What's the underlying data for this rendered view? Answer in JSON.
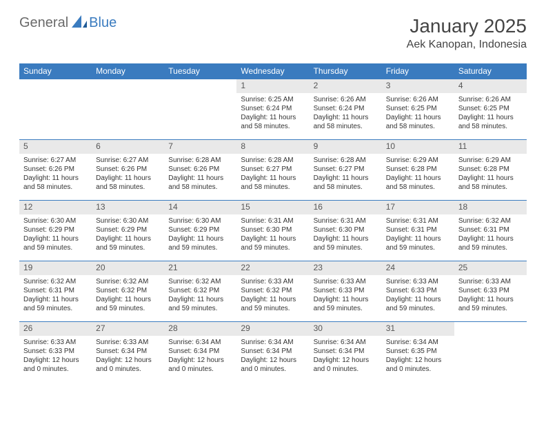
{
  "logo": {
    "part1": "General",
    "part2": "Blue"
  },
  "title": "January 2025",
  "location": "Aek Kanopan, Indonesia",
  "colors": {
    "header_bg": "#3a7bbf",
    "header_text": "#ffffff",
    "daynum_bg": "#e9e9e9",
    "border": "#3a7bbf",
    "logo_gray": "#6a6a6a",
    "logo_blue": "#3a7bbf"
  },
  "day_headers": [
    "Sunday",
    "Monday",
    "Tuesday",
    "Wednesday",
    "Thursday",
    "Friday",
    "Saturday"
  ],
  "weeks": [
    [
      {
        "empty": true
      },
      {
        "empty": true
      },
      {
        "empty": true
      },
      {
        "num": "1",
        "sunrise": "Sunrise: 6:25 AM",
        "sunset": "Sunset: 6:24 PM",
        "daylight": "Daylight: 11 hours and 58 minutes."
      },
      {
        "num": "2",
        "sunrise": "Sunrise: 6:26 AM",
        "sunset": "Sunset: 6:24 PM",
        "daylight": "Daylight: 11 hours and 58 minutes."
      },
      {
        "num": "3",
        "sunrise": "Sunrise: 6:26 AM",
        "sunset": "Sunset: 6:25 PM",
        "daylight": "Daylight: 11 hours and 58 minutes."
      },
      {
        "num": "4",
        "sunrise": "Sunrise: 6:26 AM",
        "sunset": "Sunset: 6:25 PM",
        "daylight": "Daylight: 11 hours and 58 minutes."
      }
    ],
    [
      {
        "num": "5",
        "sunrise": "Sunrise: 6:27 AM",
        "sunset": "Sunset: 6:26 PM",
        "daylight": "Daylight: 11 hours and 58 minutes."
      },
      {
        "num": "6",
        "sunrise": "Sunrise: 6:27 AM",
        "sunset": "Sunset: 6:26 PM",
        "daylight": "Daylight: 11 hours and 58 minutes."
      },
      {
        "num": "7",
        "sunrise": "Sunrise: 6:28 AM",
        "sunset": "Sunset: 6:26 PM",
        "daylight": "Daylight: 11 hours and 58 minutes."
      },
      {
        "num": "8",
        "sunrise": "Sunrise: 6:28 AM",
        "sunset": "Sunset: 6:27 PM",
        "daylight": "Daylight: 11 hours and 58 minutes."
      },
      {
        "num": "9",
        "sunrise": "Sunrise: 6:28 AM",
        "sunset": "Sunset: 6:27 PM",
        "daylight": "Daylight: 11 hours and 58 minutes."
      },
      {
        "num": "10",
        "sunrise": "Sunrise: 6:29 AM",
        "sunset": "Sunset: 6:28 PM",
        "daylight": "Daylight: 11 hours and 58 minutes."
      },
      {
        "num": "11",
        "sunrise": "Sunrise: 6:29 AM",
        "sunset": "Sunset: 6:28 PM",
        "daylight": "Daylight: 11 hours and 58 minutes."
      }
    ],
    [
      {
        "num": "12",
        "sunrise": "Sunrise: 6:30 AM",
        "sunset": "Sunset: 6:29 PM",
        "daylight": "Daylight: 11 hours and 59 minutes."
      },
      {
        "num": "13",
        "sunrise": "Sunrise: 6:30 AM",
        "sunset": "Sunset: 6:29 PM",
        "daylight": "Daylight: 11 hours and 59 minutes."
      },
      {
        "num": "14",
        "sunrise": "Sunrise: 6:30 AM",
        "sunset": "Sunset: 6:29 PM",
        "daylight": "Daylight: 11 hours and 59 minutes."
      },
      {
        "num": "15",
        "sunrise": "Sunrise: 6:31 AM",
        "sunset": "Sunset: 6:30 PM",
        "daylight": "Daylight: 11 hours and 59 minutes."
      },
      {
        "num": "16",
        "sunrise": "Sunrise: 6:31 AM",
        "sunset": "Sunset: 6:30 PM",
        "daylight": "Daylight: 11 hours and 59 minutes."
      },
      {
        "num": "17",
        "sunrise": "Sunrise: 6:31 AM",
        "sunset": "Sunset: 6:31 PM",
        "daylight": "Daylight: 11 hours and 59 minutes."
      },
      {
        "num": "18",
        "sunrise": "Sunrise: 6:32 AM",
        "sunset": "Sunset: 6:31 PM",
        "daylight": "Daylight: 11 hours and 59 minutes."
      }
    ],
    [
      {
        "num": "19",
        "sunrise": "Sunrise: 6:32 AM",
        "sunset": "Sunset: 6:31 PM",
        "daylight": "Daylight: 11 hours and 59 minutes."
      },
      {
        "num": "20",
        "sunrise": "Sunrise: 6:32 AM",
        "sunset": "Sunset: 6:32 PM",
        "daylight": "Daylight: 11 hours and 59 minutes."
      },
      {
        "num": "21",
        "sunrise": "Sunrise: 6:32 AM",
        "sunset": "Sunset: 6:32 PM",
        "daylight": "Daylight: 11 hours and 59 minutes."
      },
      {
        "num": "22",
        "sunrise": "Sunrise: 6:33 AM",
        "sunset": "Sunset: 6:32 PM",
        "daylight": "Daylight: 11 hours and 59 minutes."
      },
      {
        "num": "23",
        "sunrise": "Sunrise: 6:33 AM",
        "sunset": "Sunset: 6:33 PM",
        "daylight": "Daylight: 11 hours and 59 minutes."
      },
      {
        "num": "24",
        "sunrise": "Sunrise: 6:33 AM",
        "sunset": "Sunset: 6:33 PM",
        "daylight": "Daylight: 11 hours and 59 minutes."
      },
      {
        "num": "25",
        "sunrise": "Sunrise: 6:33 AM",
        "sunset": "Sunset: 6:33 PM",
        "daylight": "Daylight: 11 hours and 59 minutes."
      }
    ],
    [
      {
        "num": "26",
        "sunrise": "Sunrise: 6:33 AM",
        "sunset": "Sunset: 6:33 PM",
        "daylight": "Daylight: 12 hours and 0 minutes."
      },
      {
        "num": "27",
        "sunrise": "Sunrise: 6:33 AM",
        "sunset": "Sunset: 6:34 PM",
        "daylight": "Daylight: 12 hours and 0 minutes."
      },
      {
        "num": "28",
        "sunrise": "Sunrise: 6:34 AM",
        "sunset": "Sunset: 6:34 PM",
        "daylight": "Daylight: 12 hours and 0 minutes."
      },
      {
        "num": "29",
        "sunrise": "Sunrise: 6:34 AM",
        "sunset": "Sunset: 6:34 PM",
        "daylight": "Daylight: 12 hours and 0 minutes."
      },
      {
        "num": "30",
        "sunrise": "Sunrise: 6:34 AM",
        "sunset": "Sunset: 6:34 PM",
        "daylight": "Daylight: 12 hours and 0 minutes."
      },
      {
        "num": "31",
        "sunrise": "Sunrise: 6:34 AM",
        "sunset": "Sunset: 6:35 PM",
        "daylight": "Daylight: 12 hours and 0 minutes."
      },
      {
        "empty": true
      }
    ]
  ]
}
